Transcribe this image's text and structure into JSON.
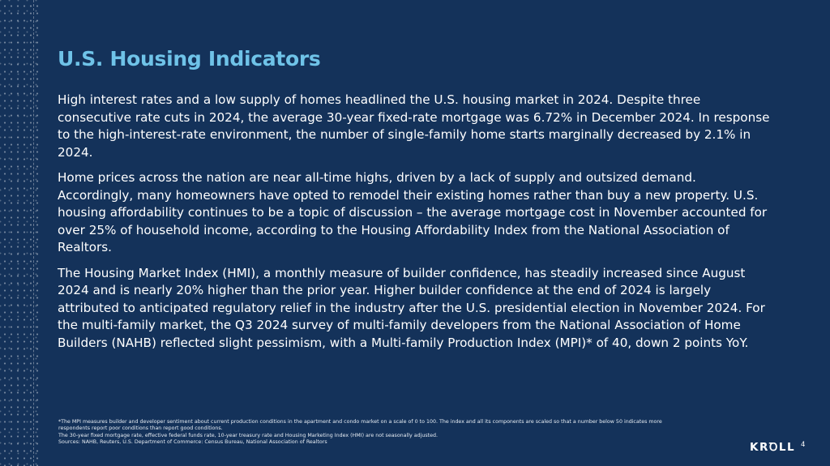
{
  "slide": {
    "title": "U.S. Housing Indicators",
    "paragraphs": [
      "High interest rates and a low supply of homes headlined the U.S. housing market in 2024. Despite three consecutive rate cuts in 2024, the average 30-year fixed-rate mortgage was 6.72% in December 2024. In response to the high-interest-rate environment, the number of single-family home starts marginally decreased by 2.1% in 2024.",
      "Home prices across the nation are near all-time highs, driven by a lack of supply and outsized demand. Accordingly, many homeowners have opted to remodel their existing homes rather than buy a new property. U.S. housing affordability continues to be a topic of discussion – the average mortgage cost in November accounted for over 25% of household income, according to the Housing Affordability Index from the National Association of Realtors.",
      "The Housing Market Index (HMI), a monthly measure of builder confidence, has steadily increased since August 2024 and is nearly 20% higher than the prior year. Higher builder confidence at the end of 2024 is largely attributed to anticipated regulatory relief in the industry after the U.S. presidential election in November 2024. For the multi-family market, the Q3 2024 survey of multi-family developers from the National Association of Home Builders (NAHB) reflected slight pessimism, with a Multi-family Production Index (MPI)* of 40, down 2 points YoY."
    ],
    "footnotes": [
      "*The MPI measures builder and developer sentiment about current production conditions in the apartment and condo market on a scale of 0 to 100. The index and all its components are scaled so that a number below 50 indicates more",
      "respondents report poor conditions than report good conditions.",
      "The 30-year fixed mortgage rate, effective federal funds rate, 10-year treasury rate and Housing Marketing Index (HMI) are not seasonally adjusted.",
      "Sources: NAHB, Reuters, U.S. Department of Commerce: Census Bureau, National Association of Realtors"
    ],
    "logo_text": "KRꝹLL",
    "page_number": "4"
  }
}
